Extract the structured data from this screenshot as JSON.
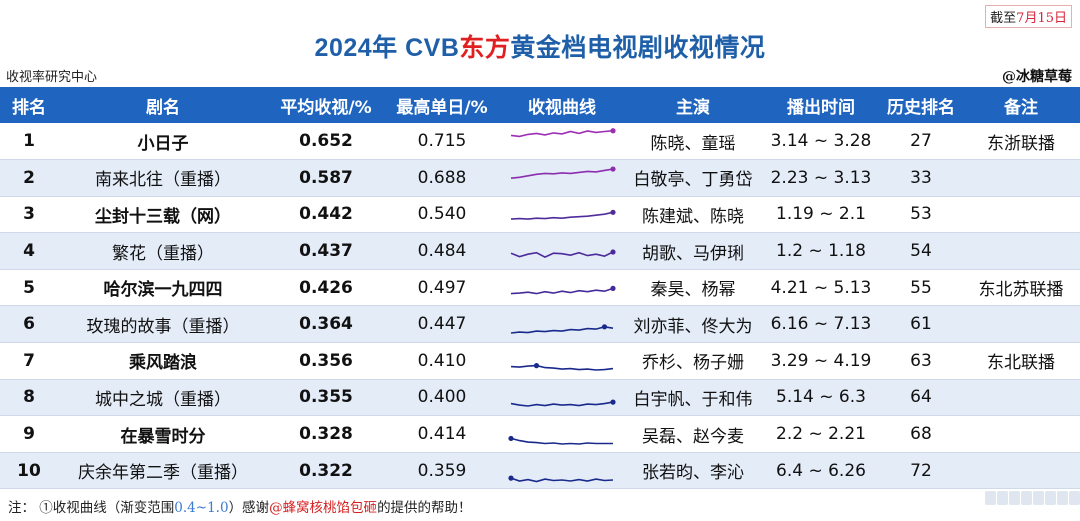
{
  "cutoff": {
    "prefix": "截至",
    "date": "7月15日"
  },
  "title": {
    "prefix": "2024年 CVB",
    "highlight": "东方",
    "suffix": "黄金档电视剧收视情况"
  },
  "source": "收视率研究中心",
  "author": "@冰糖草莓",
  "colors": {
    "header_bg": "#1f65c0",
    "title": "#1f5fa8",
    "accent_red": "#e02020",
    "row_alt": "#e4ecf8"
  },
  "columns": [
    "排名",
    "剧名",
    "平均收视/%",
    "最高单日/%",
    "收视曲线",
    "主演",
    "播出时间",
    "历史排名",
    "备注"
  ],
  "rows": [
    {
      "rank": "1",
      "name": "小日子",
      "bold": true,
      "avg": "0.652",
      "peak": "0.715",
      "cast": "陈晓、童瑶",
      "airtime": "3.14 ~ 3.28",
      "history": "27",
      "note": "东浙联播",
      "curve": [
        0.62,
        0.6,
        0.64,
        0.66,
        0.63,
        0.67,
        0.65,
        0.7,
        0.66,
        0.71,
        0.68,
        0.7,
        0.715
      ]
    },
    {
      "rank": "2",
      "name": "南来北往（重播）",
      "bold": false,
      "avg": "0.587",
      "peak": "0.688",
      "cast": "白敬亭、丁勇岱",
      "airtime": "2.23 ~ 3.13",
      "history": "33",
      "note": "",
      "curve": [
        0.5,
        0.52,
        0.55,
        0.58,
        0.6,
        0.59,
        0.61,
        0.6,
        0.62,
        0.64,
        0.63,
        0.66,
        0.688
      ]
    },
    {
      "rank": "3",
      "name": "尘封十三载（网）",
      "bold": true,
      "avg": "0.442",
      "peak": "0.540",
      "cast": "陈建斌、陈晓",
      "airtime": "1.19 ~  2.1",
      "history": "53",
      "note": "",
      "curve": [
        0.4,
        0.41,
        0.4,
        0.42,
        0.41,
        0.43,
        0.42,
        0.44,
        0.45,
        0.46,
        0.48,
        0.5,
        0.54
      ]
    },
    {
      "rank": "4",
      "name": "繁花（重播）",
      "bold": false,
      "avg": "0.437",
      "peak": "0.484",
      "cast": "胡歌、马伊琍",
      "airtime": "1.2  ~ 1.18",
      "history": "54",
      "note": "",
      "curve": [
        0.46,
        0.39,
        0.44,
        0.47,
        0.38,
        0.46,
        0.45,
        0.42,
        0.47,
        0.41,
        0.44,
        0.4,
        0.484
      ]
    },
    {
      "rank": "5",
      "name": "哈尔滨一九四四",
      "bold": true,
      "avg": "0.426",
      "peak": "0.497",
      "cast": "秦昊、杨幂",
      "airtime": "4.21 ~ 5.13",
      "history": "55",
      "note": "东北苏联播",
      "curve": [
        0.39,
        0.4,
        0.42,
        0.39,
        0.43,
        0.4,
        0.44,
        0.41,
        0.45,
        0.43,
        0.46,
        0.44,
        0.497
      ]
    },
    {
      "rank": "6",
      "name": "玫瑰的故事（重播）",
      "bold": false,
      "avg": "0.364",
      "peak": "0.447",
      "cast": "刘亦菲、佟大为",
      "airtime": "6.16 ~ 7.13",
      "history": "61",
      "note": "",
      "curve": [
        0.32,
        0.34,
        0.33,
        0.36,
        0.35,
        0.37,
        0.36,
        0.39,
        0.38,
        0.41,
        0.4,
        0.447,
        0.42
      ]
    },
    {
      "rank": "7",
      "name": "乘风踏浪",
      "bold": true,
      "avg": "0.356",
      "peak": "0.410",
      "cast": "乔杉、杨子姗",
      "airtime": "3.29 ~ 4.19",
      "history": "63",
      "note": "东北联播",
      "curve": [
        0.39,
        0.38,
        0.4,
        0.41,
        0.37,
        0.36,
        0.34,
        0.35,
        0.33,
        0.34,
        0.32,
        0.33,
        0.35
      ]
    },
    {
      "rank": "8",
      "name": "城中之城（重播）",
      "bold": false,
      "avg": "0.355",
      "peak": "0.400",
      "cast": "白宇帆、于和伟",
      "airtime": "5.14 ~  6.3",
      "history": "64",
      "note": "",
      "curve": [
        0.37,
        0.34,
        0.32,
        0.35,
        0.33,
        0.36,
        0.34,
        0.35,
        0.33,
        0.36,
        0.35,
        0.37,
        0.4
      ]
    },
    {
      "rank": "9",
      "name": "在暴雪时分",
      "bold": true,
      "avg": "0.328",
      "peak": "0.414",
      "cast": "吴磊、赵今麦",
      "airtime": "2.2  ~ 2.21",
      "history": "68",
      "note": "",
      "curve": [
        0.414,
        0.37,
        0.34,
        0.33,
        0.31,
        0.32,
        0.3,
        0.31,
        0.3,
        0.32,
        0.31,
        0.31,
        0.31
      ]
    },
    {
      "rank": "10",
      "name": "庆余年第二季（重播）",
      "bold": false,
      "avg": "0.322",
      "peak": "0.359",
      "cast": "张若昀、李沁",
      "airtime": "6.4  ~ 6.26",
      "history": "72",
      "note": "",
      "curve": [
        0.359,
        0.3,
        0.33,
        0.29,
        0.34,
        0.31,
        0.32,
        0.3,
        0.33,
        0.3,
        0.34,
        0.31,
        0.32
      ]
    }
  ],
  "footer": {
    "prefix": "注：  ①收视曲线（渐变范围",
    "range": "0.4~1.0",
    "middle": "）感谢",
    "credit": "@蜂窝核桃馅包砸",
    "suffix": "的提供的帮助！"
  },
  "scale": {
    "min": 0.4,
    "max": 1.0,
    "low_color": "#1a2a8c",
    "high_color": "#e030c8"
  }
}
